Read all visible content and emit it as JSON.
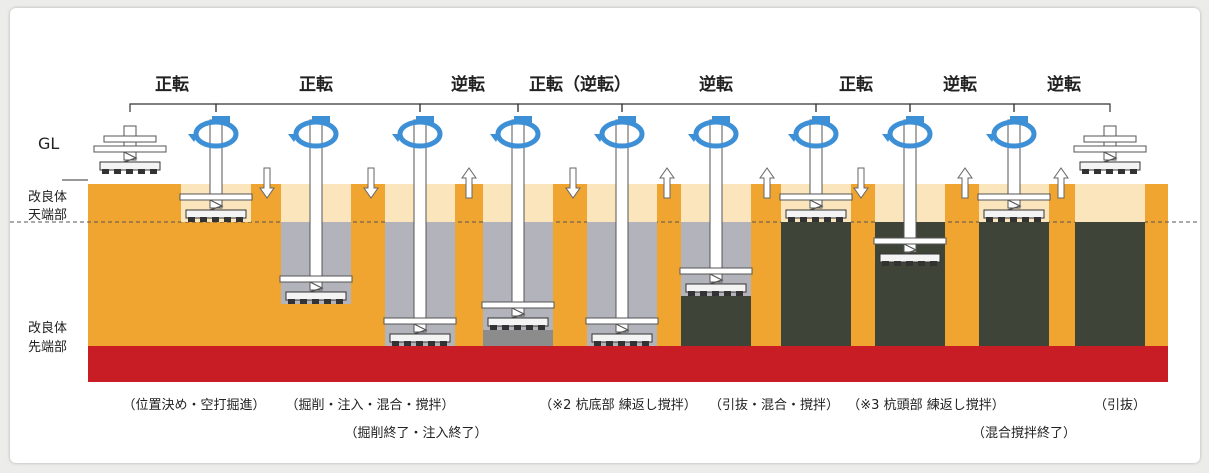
{
  "rotation_labels": [
    "正転",
    "正転",
    "逆転",
    "正転（逆転）",
    "逆転",
    "正転",
    "逆転",
    "逆転"
  ],
  "left_labels": {
    "gl": "GL",
    "top_zone": [
      "改良体",
      "天端部"
    ],
    "bottom_zone": [
      "改良体",
      "先端部"
    ]
  },
  "step_captions": [
    "（位置決め・空打掘進）",
    "（掘削・注入・混合・撹拌）",
    "（掘削終了・注入終了）",
    "（※2 杭底部 練返し撹拌）",
    "（引抜・混合・撹拌）",
    "（※3 杭頭部 練返し撹拌）",
    "（混合撹拌終了）",
    "（引抜）"
  ],
  "colors": {
    "soil": "#f0a531",
    "bottom_layer": "#c81d25",
    "top_band": "#fbe5bd",
    "column_unmixed": "#b3b3bb",
    "column_mixed": "#3e4538",
    "rod": "#ffffff",
    "rotation_arrow": "#3d8fd6",
    "vertical_arrow": "#ffffff"
  }
}
